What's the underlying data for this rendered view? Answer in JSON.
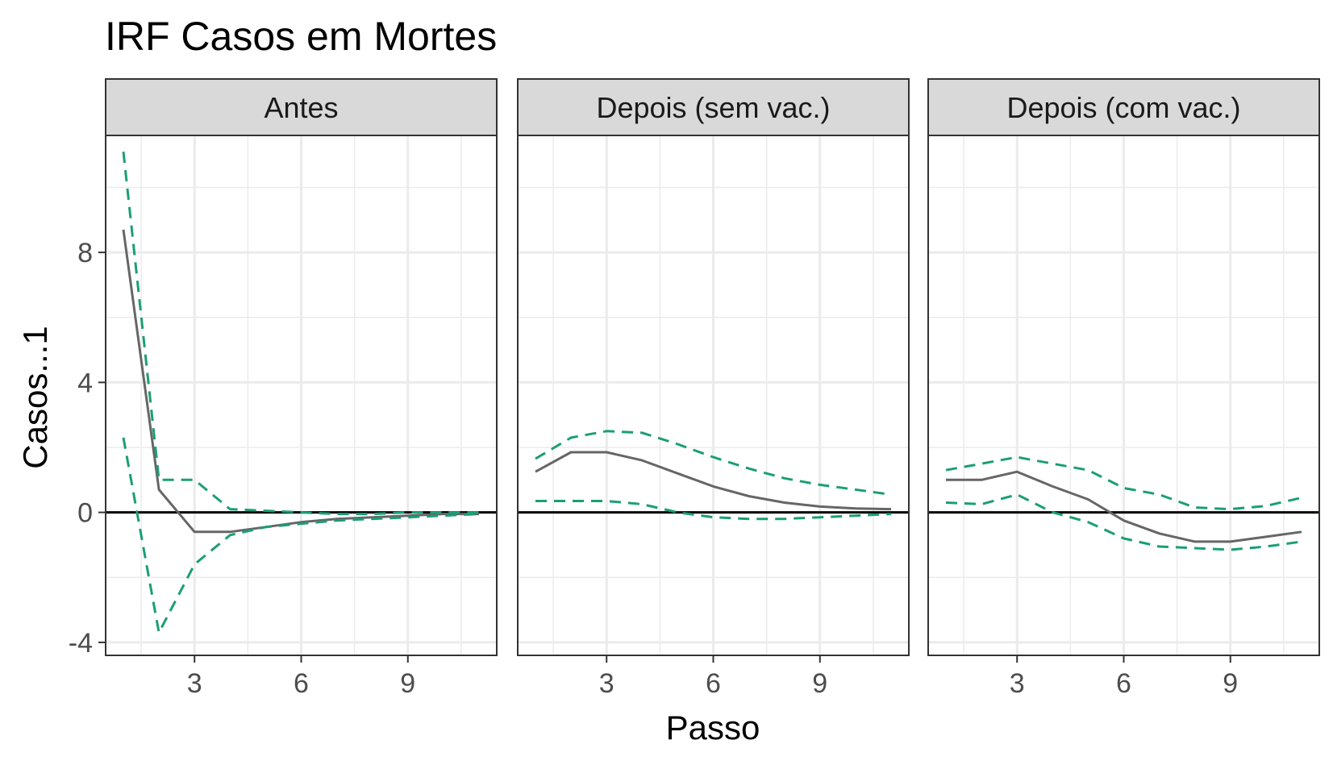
{
  "chart_data": {
    "type": "line",
    "title": "IRF Casos em Mortes",
    "xlabel": "Passo",
    "ylabel": "Casos...1",
    "xlim": [
      0.5,
      11.5
    ],
    "ylim": [
      -4.4,
      11.6
    ],
    "x_ticks": [
      3,
      6,
      9
    ],
    "y_ticks": [
      -4,
      0,
      4,
      8
    ],
    "x_minor": [
      1.5,
      4.5,
      7.5,
      10.5
    ],
    "y_minor": [
      -2,
      2,
      6,
      10
    ],
    "zero_line": 0,
    "grid": true,
    "legend": "none",
    "colors": {
      "irf": "#666666",
      "bands": "#1b9e77",
      "strip_bg": "#d9d9d9",
      "grid": "#ebebeb",
      "zero": "#000000"
    },
    "panels": [
      {
        "name": "Antes",
        "x": [
          1,
          2,
          3,
          4,
          5,
          6,
          7,
          8,
          9,
          10,
          11
        ],
        "series": [
          {
            "role": "irf",
            "values": [
              8.7,
              0.7,
              -0.6,
              -0.6,
              -0.45,
              -0.3,
              -0.2,
              -0.15,
              -0.1,
              -0.05,
              -0.05
            ]
          },
          {
            "role": "upper",
            "values": [
              11.1,
              1.0,
              1.0,
              0.1,
              0.05,
              0.0,
              -0.05,
              -0.05,
              0.0,
              0.0,
              0.0
            ]
          },
          {
            "role": "lower",
            "values": [
              2.3,
              -3.7,
              -1.6,
              -0.7,
              -0.45,
              -0.35,
              -0.25,
              -0.2,
              -0.15,
              -0.1,
              -0.05
            ]
          }
        ]
      },
      {
        "name": "Depois (sem vac.)",
        "x": [
          1,
          2,
          3,
          4,
          5,
          6,
          7,
          8,
          9,
          10,
          11
        ],
        "series": [
          {
            "role": "irf",
            "values": [
              1.25,
              1.85,
              1.85,
              1.6,
              1.2,
              0.8,
              0.5,
              0.3,
              0.18,
              0.12,
              0.1
            ]
          },
          {
            "role": "upper",
            "values": [
              1.65,
              2.3,
              2.5,
              2.45,
              2.1,
              1.7,
              1.35,
              1.05,
              0.85,
              0.7,
              0.55
            ]
          },
          {
            "role": "lower",
            "values": [
              0.35,
              0.35,
              0.35,
              0.25,
              0.0,
              -0.15,
              -0.2,
              -0.2,
              -0.15,
              -0.1,
              -0.05
            ]
          }
        ]
      },
      {
        "name": "Depois (com vac.)",
        "x": [
          1,
          2,
          3,
          4,
          5,
          6,
          7,
          8,
          9,
          10,
          11
        ],
        "series": [
          {
            "role": "irf",
            "values": [
              1.0,
              1.0,
              1.25,
              0.8,
              0.4,
              -0.25,
              -0.65,
              -0.9,
              -0.9,
              -0.75,
              -0.6
            ]
          },
          {
            "role": "upper",
            "values": [
              1.3,
              1.5,
              1.7,
              1.5,
              1.3,
              0.75,
              0.55,
              0.15,
              0.1,
              0.2,
              0.45
            ]
          },
          {
            "role": "lower",
            "values": [
              0.3,
              0.25,
              0.55,
              0.0,
              -0.3,
              -0.8,
              -1.05,
              -1.1,
              -1.15,
              -1.05,
              -0.9
            ]
          }
        ]
      }
    ]
  }
}
